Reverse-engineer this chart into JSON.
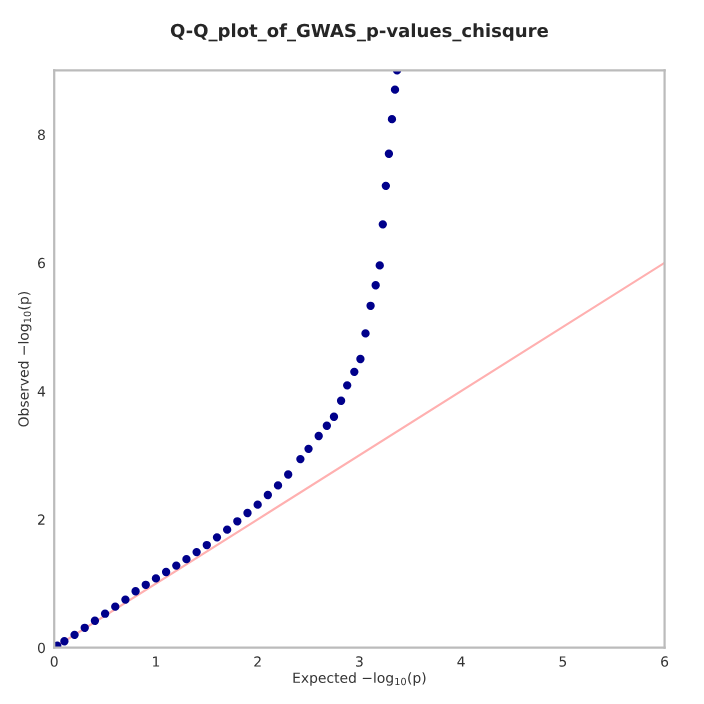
{
  "chart_data": {
    "type": "scatter",
    "title": "Q-Q_plot_of_GWAS_p-values_chisqure",
    "xlabel": "Expected −log$_{10}$(p)",
    "ylabel": "Observed −log$_{10}$(p)",
    "xlim": [
      0,
      6
    ],
    "ylim": [
      0,
      9
    ],
    "xticks": [
      0,
      1,
      2,
      3,
      4,
      5,
      6
    ],
    "yticks": [
      0,
      2,
      4,
      6,
      8
    ],
    "grid": false,
    "marker": "circle",
    "series": [
      {
        "type": "line",
        "marker": "none",
        "color": "#ffb0b0",
        "x": [
          0,
          6
        ],
        "values": [
          0,
          6
        ]
      },
      {
        "color": "#00008b",
        "x": [
          0.03,
          0.1,
          0.2,
          0.3,
          0.4,
          0.5,
          0.6,
          0.7,
          0.8,
          0.9,
          1.0,
          1.1,
          1.2,
          1.3,
          1.4,
          1.5,
          1.6,
          1.7,
          1.8,
          1.9,
          2.0,
          2.1,
          2.2,
          2.3,
          2.42,
          2.5,
          2.6,
          2.68,
          2.75,
          2.82,
          2.88,
          2.95,
          3.01,
          3.06,
          3.11,
          3.16,
          3.2,
          3.23,
          3.26,
          3.29,
          3.32,
          3.35,
          3.37
        ],
        "values": [
          0.03,
          0.1,
          0.2,
          0.31,
          0.42,
          0.53,
          0.64,
          0.75,
          0.88,
          0.98,
          1.08,
          1.18,
          1.28,
          1.38,
          1.49,
          1.6,
          1.72,
          1.84,
          1.97,
          2.1,
          2.23,
          2.38,
          2.53,
          2.7,
          2.94,
          3.1,
          3.3,
          3.46,
          3.6,
          3.85,
          4.09,
          4.3,
          4.5,
          4.9,
          5.33,
          5.65,
          5.96,
          6.6,
          7.2,
          7.7,
          8.24,
          8.7,
          9.0
        ]
      }
    ]
  }
}
